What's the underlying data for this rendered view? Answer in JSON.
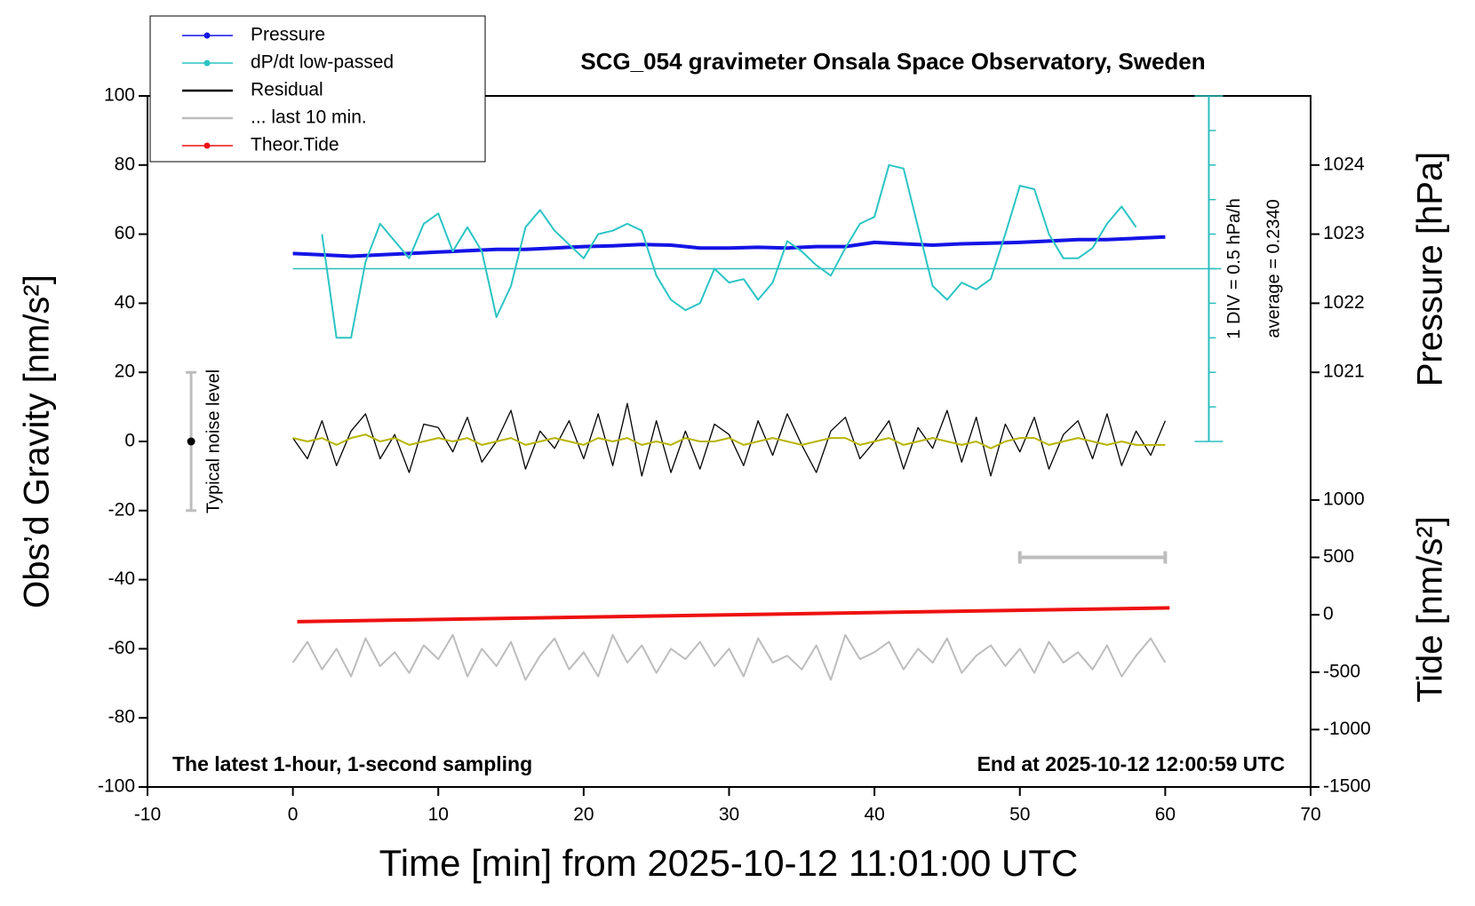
{
  "chart_data": {
    "type": "line",
    "title": "SCG_054 gravimeter Onsala Space Observatory, Sweden",
    "x_label": "Time [min] from 2025-10-12 11:01:00 UTC",
    "y_label": "Obs’d Gravity [nm/s²]",
    "y2_label": "Pressure [hPa]",
    "y3_label": "Tide [nm/s²]",
    "xlim": [
      -10,
      70
    ],
    "xticks": [
      -10,
      0,
      10,
      20,
      30,
      40,
      50,
      60,
      70
    ],
    "ylim": [
      -100,
      100
    ],
    "yticks": [
      -100,
      -80,
      -60,
      -40,
      -20,
      0,
      20,
      40,
      60,
      80,
      100
    ],
    "y2lim": [
      1015,
      1025
    ],
    "y2ticks": [
      1021,
      1022,
      1023,
      1024
    ],
    "y3lim": [
      -1500,
      4520
    ],
    "y3ticks": [
      -1500,
      -1000,
      -500,
      0,
      500,
      1000
    ],
    "legend": "upper left",
    "annotations": {
      "left_note": "The latest 1-hour, 1-second sampling",
      "right_note": "End at 2025-10-12 12:00:59 UTC",
      "div_note": "1 DIV = 0.5 hPa/h",
      "average_note": "average = 0.2340",
      "noise_label": "Typical noise level"
    },
    "noise_bar": {
      "x": -7,
      "value": 0,
      "error": 20
    },
    "scale_bar": {
      "x": [
        50,
        60
      ],
      "y": 500
    },
    "dpdt_scale": {
      "x": 63,
      "range": [
        0,
        100
      ],
      "ticks": [
        0,
        10,
        20,
        30,
        40,
        50,
        60,
        70,
        80,
        90,
        100
      ],
      "baseline": 50,
      "color": "#2bbdbd"
    },
    "x": [
      0,
      1,
      2,
      3,
      4,
      5,
      6,
      7,
      8,
      9,
      10,
      11,
      12,
      13,
      14,
      15,
      16,
      17,
      18,
      19,
      20,
      21,
      22,
      23,
      24,
      25,
      26,
      27,
      28,
      29,
      30,
      31,
      32,
      33,
      34,
      35,
      36,
      37,
      38,
      39,
      40,
      41,
      42,
      43,
      44,
      45,
      46,
      47,
      48,
      49,
      50,
      51,
      52,
      53,
      54,
      55,
      56,
      57,
      58,
      59,
      60
    ],
    "series": [
      {
        "name": "Pressure",
        "color": "#1414e6",
        "axis": "y2",
        "marker": "dot",
        "width": 4,
        "x": [
          0,
          2,
          4,
          6,
          8,
          10,
          12,
          14,
          16,
          18,
          20,
          22,
          24,
          26,
          28,
          30,
          32,
          34,
          36,
          38,
          40,
          42,
          44,
          46,
          48,
          50,
          52,
          54,
          56,
          58,
          60
        ],
        "values": [
          1022.72,
          1022.7,
          1022.68,
          1022.7,
          1022.72,
          1022.74,
          1022.76,
          1022.78,
          1022.78,
          1022.8,
          1022.82,
          1022.83,
          1022.85,
          1022.84,
          1022.8,
          1022.8,
          1022.81,
          1022.8,
          1022.82,
          1022.82,
          1022.88,
          1022.86,
          1022.84,
          1022.86,
          1022.87,
          1022.88,
          1022.9,
          1022.92,
          1022.92,
          1022.94,
          1022.96
        ]
      },
      {
        "name": "dP/dt low-passed",
        "color": "#2bc4c4",
        "axis": "y",
        "marker": "dot",
        "width": 2,
        "x": [
          2,
          3,
          4,
          5,
          6,
          7,
          8,
          9,
          10,
          11,
          12,
          13,
          14,
          15,
          16,
          17,
          18,
          19,
          20,
          21,
          22,
          23,
          24,
          25,
          26,
          27,
          28,
          29,
          30,
          31,
          32,
          33,
          34,
          35,
          36,
          37,
          38,
          39,
          40,
          41,
          42,
          43,
          44,
          45,
          46,
          47,
          48,
          49,
          50,
          51,
          52,
          53,
          54,
          55,
          56,
          57,
          58
        ],
        "values": [
          60,
          30,
          30,
          52,
          63,
          58,
          53,
          63,
          66,
          55,
          62,
          55,
          36,
          45,
          62,
          67,
          61,
          57,
          53,
          60,
          61,
          63,
          61,
          48,
          41,
          38,
          40,
          50,
          46,
          47,
          41,
          46,
          58,
          55,
          51,
          48,
          56,
          63,
          65,
          80,
          79,
          62,
          45,
          41,
          46,
          44,
          47,
          60,
          74,
          73,
          60,
          53,
          53,
          56,
          63,
          68,
          62
        ]
      },
      {
        "name": "Residual",
        "color": "#000000",
        "axis": "y",
        "width": 1.3,
        "values": [
          1,
          -5,
          6,
          -7,
          3,
          8,
          -5,
          2,
          -9,
          5,
          4,
          -3,
          7,
          -6,
          0,
          9,
          -8,
          3,
          -2,
          6,
          -5,
          8,
          -7,
          11,
          -10,
          6,
          -9,
          3,
          -8,
          5,
          2,
          -7,
          6,
          -4,
          8,
          -1,
          -9,
          3,
          7,
          -5,
          0,
          6,
          -8,
          4,
          -2,
          9,
          -6,
          7,
          -10,
          5,
          -3,
          7,
          -8,
          2,
          6,
          -5,
          8,
          -7,
          3,
          -4,
          6
        ]
      },
      {
        "name": "... last 10 min.",
        "color": "#bdbdbd",
        "axis": "y",
        "width": 2,
        "values": [
          -64,
          -58,
          -66,
          -60,
          -68,
          -57,
          -65,
          -61,
          -67,
          -59,
          -63,
          -56,
          -68,
          -60,
          -65,
          -58,
          -69,
          -62,
          -57,
          -66,
          -61,
          -68,
          -56,
          -64,
          -59,
          -67,
          -60,
          -63,
          -58,
          -65,
          -60,
          -68,
          -57,
          -64,
          -62,
          -66,
          -59,
          -69,
          -56,
          -63,
          -61,
          -58,
          -66,
          -60,
          -64,
          -57,
          -67,
          -62,
          -59,
          -65,
          -60,
          -67,
          -58,
          -64,
          -61,
          -66,
          -59,
          -68,
          -62,
          -57,
          -64
        ]
      },
      {
        "name": "Theor.Tide",
        "color": "#ee1111",
        "axis": "y3",
        "marker": "dot",
        "width": 4,
        "x": [
          0.3,
          60.3
        ],
        "values": [
          -60,
          60
        ]
      },
      {
        "color": "#b8b400",
        "axis": "y",
        "width": 2,
        "values": [
          1,
          0,
          1,
          -1,
          1,
          2,
          0,
          1,
          -1,
          0,
          1,
          0,
          1,
          -1,
          0,
          1,
          -1,
          0,
          1,
          0,
          -1,
          1,
          0,
          1,
          -1,
          0,
          -1,
          1,
          0,
          0,
          1,
          -1,
          0,
          1,
          0,
          -1,
          0,
          1,
          1,
          -1,
          0,
          1,
          -1,
          0,
          1,
          0,
          -1,
          0,
          -2,
          0,
          1,
          1,
          -1,
          0,
          1,
          0,
          -1,
          0,
          -1,
          -1,
          -1
        ]
      }
    ]
  }
}
